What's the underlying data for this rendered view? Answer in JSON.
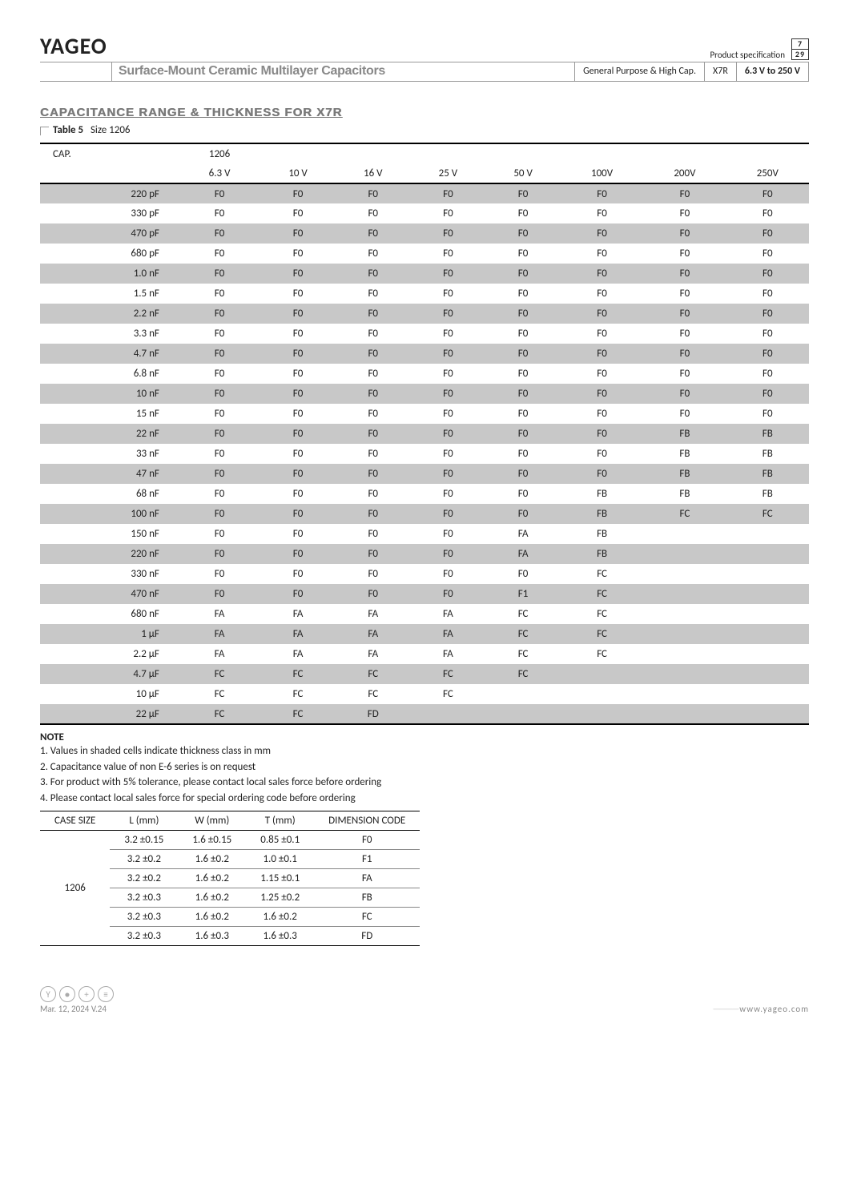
{
  "header": {
    "brand": "YAGEO",
    "spec_label": "Product specification",
    "page_num": "7",
    "page_total": "29",
    "title": "Surface-Mount Ceramic Multilayer Capacitors",
    "seg1": "General Purpose & High Cap.",
    "seg2": "X7R",
    "seg3": "6.3 V to 250 V"
  },
  "section": {
    "title": "CAPACITANCE RANGE & THICKNESS FOR X7R",
    "table_label": "Table 5",
    "table_size": "Size 1206"
  },
  "main_table": {
    "cap_label": "CAP.",
    "size_label": "1206",
    "voltages": [
      "6.3 V",
      "10 V",
      "16 V",
      "25 V",
      "50 V",
      "100V",
      "200V",
      "250V"
    ],
    "rows": [
      {
        "cap": "220 pF",
        "v": [
          "F0",
          "F0",
          "F0",
          "F0",
          "F0",
          "F0",
          "F0",
          "F0"
        ]
      },
      {
        "cap": "330 pF",
        "v": [
          "F0",
          "F0",
          "F0",
          "F0",
          "F0",
          "F0",
          "F0",
          "F0"
        ]
      },
      {
        "cap": "470 pF",
        "v": [
          "F0",
          "F0",
          "F0",
          "F0",
          "F0",
          "F0",
          "F0",
          "F0"
        ]
      },
      {
        "cap": "680 pF",
        "v": [
          "F0",
          "F0",
          "F0",
          "F0",
          "F0",
          "F0",
          "F0",
          "F0"
        ]
      },
      {
        "cap": "1.0 nF",
        "v": [
          "F0",
          "F0",
          "F0",
          "F0",
          "F0",
          "F0",
          "F0",
          "F0"
        ]
      },
      {
        "cap": "1.5 nF",
        "v": [
          "F0",
          "F0",
          "F0",
          "F0",
          "F0",
          "F0",
          "F0",
          "F0"
        ]
      },
      {
        "cap": "2.2 nF",
        "v": [
          "F0",
          "F0",
          "F0",
          "F0",
          "F0",
          "F0",
          "F0",
          "F0"
        ]
      },
      {
        "cap": "3.3 nF",
        "v": [
          "F0",
          "F0",
          "F0",
          "F0",
          "F0",
          "F0",
          "F0",
          "F0"
        ]
      },
      {
        "cap": "4.7 nF",
        "v": [
          "F0",
          "F0",
          "F0",
          "F0",
          "F0",
          "F0",
          "F0",
          "F0"
        ]
      },
      {
        "cap": "6.8 nF",
        "v": [
          "F0",
          "F0",
          "F0",
          "F0",
          "F0",
          "F0",
          "F0",
          "F0"
        ]
      },
      {
        "cap": "10 nF",
        "v": [
          "F0",
          "F0",
          "F0",
          "F0",
          "F0",
          "F0",
          "F0",
          "F0"
        ]
      },
      {
        "cap": "15 nF",
        "v": [
          "F0",
          "F0",
          "F0",
          "F0",
          "F0",
          "F0",
          "F0",
          "F0"
        ]
      },
      {
        "cap": "22 nF",
        "v": [
          "F0",
          "F0",
          "F0",
          "F0",
          "F0",
          "F0",
          "FB",
          "FB"
        ]
      },
      {
        "cap": "33 nF",
        "v": [
          "F0",
          "F0",
          "F0",
          "F0",
          "F0",
          "F0",
          "FB",
          "FB"
        ]
      },
      {
        "cap": "47 nF",
        "v": [
          "F0",
          "F0",
          "F0",
          "F0",
          "F0",
          "F0",
          "FB",
          "FB"
        ]
      },
      {
        "cap": "68 nF",
        "v": [
          "F0",
          "F0",
          "F0",
          "F0",
          "F0",
          "FB",
          "FB",
          "FB"
        ]
      },
      {
        "cap": "100 nF",
        "v": [
          "F0",
          "F0",
          "F0",
          "F0",
          "F0",
          "FB",
          "FC",
          "FC"
        ]
      },
      {
        "cap": "150 nF",
        "v": [
          "F0",
          "F0",
          "F0",
          "F0",
          "FA",
          "FB",
          "",
          ""
        ]
      },
      {
        "cap": "220 nF",
        "v": [
          "F0",
          "F0",
          "F0",
          "F0",
          "FA",
          "FB",
          "",
          ""
        ]
      },
      {
        "cap": "330 nF",
        "v": [
          "F0",
          "F0",
          "F0",
          "F0",
          "F0",
          "FC",
          "",
          ""
        ]
      },
      {
        "cap": "470 nF",
        "v": [
          "F0",
          "F0",
          "F0",
          "F0",
          "F1",
          "FC",
          "",
          ""
        ]
      },
      {
        "cap": "680 nF",
        "v": [
          "FA",
          "FA",
          "FA",
          "FA",
          "FC",
          "FC",
          "",
          ""
        ]
      },
      {
        "cap": "1 µF",
        "v": [
          "FA",
          "FA",
          "FA",
          "FA",
          "FC",
          "FC",
          "",
          ""
        ]
      },
      {
        "cap": "2.2 µF",
        "v": [
          "FA",
          "FA",
          "FA",
          "FA",
          "FC",
          "FC",
          "",
          ""
        ]
      },
      {
        "cap": "4.7 µF",
        "v": [
          "FC",
          "FC",
          "FC",
          "FC",
          "FC",
          "",
          "",
          ""
        ]
      },
      {
        "cap": "10 µF",
        "v": [
          "FC",
          "FC",
          "FC",
          "FC",
          "",
          "",
          "",
          ""
        ]
      },
      {
        "cap": "22 µF",
        "v": [
          "FC",
          "FC",
          "FD",
          "",
          "",
          "",
          "",
          ""
        ]
      }
    ]
  },
  "notes": {
    "title": "NOTE",
    "items": [
      "1. Values in shaded cells indicate thickness class in mm",
      "2. Capacitance value of non E-6 series is on request",
      "3. For product with 5% tolerance, please contact local sales force before ordering",
      "4. Please contact local sales force for special ordering code before ordering"
    ]
  },
  "dim_table": {
    "headers": [
      "CASE SIZE",
      "L (mm)",
      "W (mm)",
      "T (mm)",
      "DIMENSION CODE"
    ],
    "case_size": "1206",
    "rows": [
      [
        "3.2 ±0.15",
        "1.6 ±0.15",
        "0.85 ±0.1",
        "F0"
      ],
      [
        "3.2 ±0.2",
        "1.6 ±0.2",
        "1.0 ±0.1",
        "F1"
      ],
      [
        "3.2 ±0.2",
        "1.6 ±0.2",
        "1.15 ±0.1",
        "FA"
      ],
      [
        "3.2 ±0.3",
        "1.6 ±0.2",
        "1.25 ±0.2",
        "FB"
      ],
      [
        "3.2 ±0.3",
        "1.6 ±0.2",
        "1.6 ±0.2",
        "FC"
      ],
      [
        "3.2 ±0.3",
        "1.6 ±0.3",
        "1.6 ±0.3",
        "FD"
      ]
    ]
  },
  "footer": {
    "date": "Mar. 12, 2024  V.24",
    "url": "www.yageo.com"
  }
}
